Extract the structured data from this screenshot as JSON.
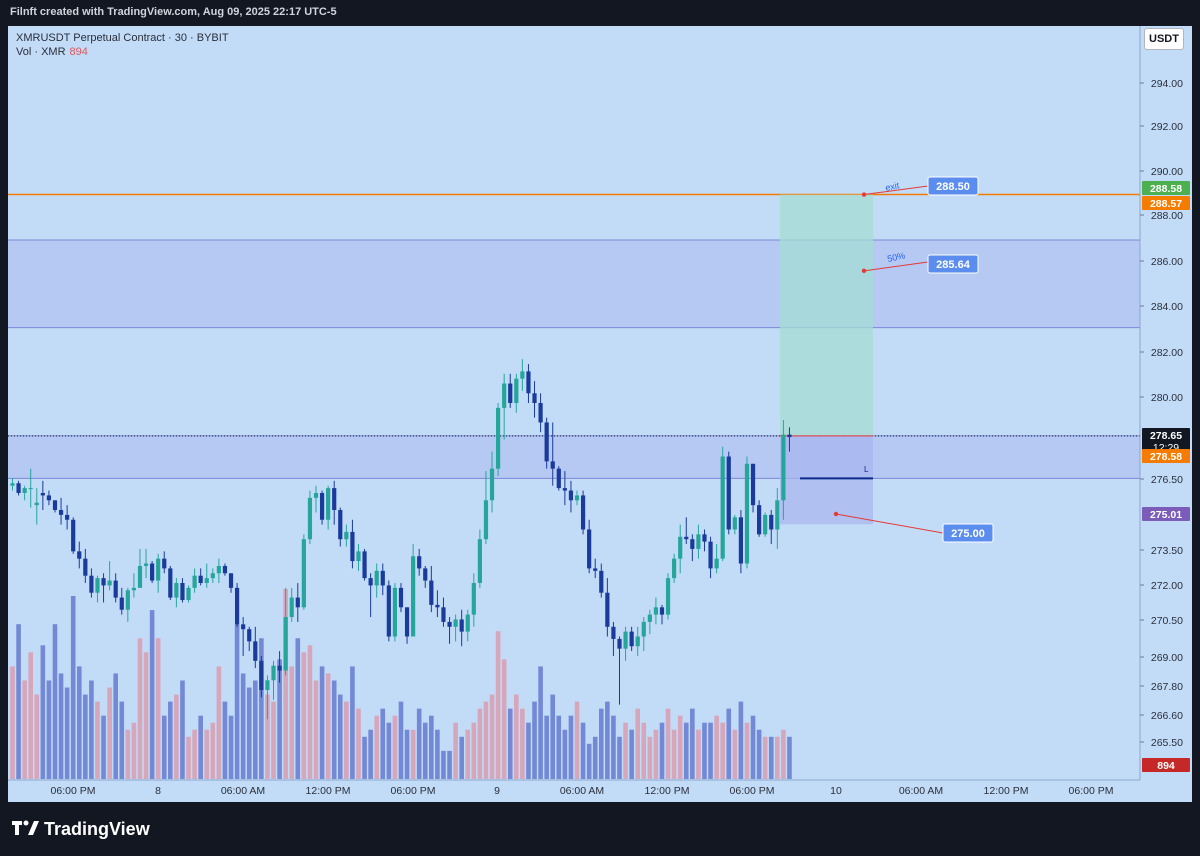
{
  "header": {
    "title": "Filnft created with TradingView.com, Aug 09, 2025 22:17 UTC-5"
  },
  "legend": {
    "symbol_line": "XMRUSDT Perpetual Contract · 30 · BYBIT",
    "vol_label": "Vol · XMR",
    "vol_value": "894"
  },
  "currency_button": "USDT",
  "footer": {
    "brand": "TradingView"
  },
  "colors": {
    "up": "#26a69a",
    "down": "#1a3a9c",
    "vol_up": "#d8a0b4",
    "vol_down": "#6a7fd0",
    "exit_line": "#f57c00",
    "background": "#c2dcf8"
  },
  "chart_data": {
    "type": "candlestick",
    "symbol": "XMRUSDT Perpetual Contract",
    "interval": "30",
    "exchange": "BYBIT",
    "ylim": [
      264.5,
      295.5
    ],
    "y_ticks": [
      "294.00",
      "292.00",
      "290.00",
      "288.00",
      "286.00",
      "284.00",
      "282.00",
      "280.00",
      "276.50",
      "273.50",
      "272.00",
      "270.50",
      "269.00",
      "267.80",
      "266.60",
      "265.50"
    ],
    "x_ticks": [
      "06:00 PM",
      "8",
      "06:00 AM",
      "12:00 PM",
      "06:00 PM",
      "9",
      "06:00 AM",
      "12:00 PM",
      "06:00 PM",
      "10",
      "06:00 AM",
      "12:00 PM",
      "06:00 PM"
    ],
    "candles": [
      [
        276.6,
        276.9,
        276.4,
        276.7,
        80
      ],
      [
        276.7,
        276.8,
        276.2,
        276.3,
        110
      ],
      [
        276.3,
        276.6,
        276.0,
        276.5,
        70
      ],
      [
        276.5,
        277.3,
        275.7,
        276.5,
        90
      ],
      [
        275.8,
        276.5,
        275.0,
        275.9,
        60
      ],
      [
        276.3,
        276.8,
        275.6,
        276.2,
        95
      ],
      [
        276.2,
        276.4,
        275.8,
        276.0,
        70
      ],
      [
        276.0,
        276.0,
        275.5,
        275.6,
        110
      ],
      [
        275.6,
        276.1,
        275.0,
        275.4,
        75
      ],
      [
        275.4,
        275.8,
        274.8,
        275.2,
        65
      ],
      [
        275.2,
        275.3,
        273.8,
        273.9,
        130
      ],
      [
        273.9,
        274.3,
        273.2,
        273.6,
        80
      ],
      [
        273.6,
        274.0,
        272.6,
        272.9,
        60
      ],
      [
        272.9,
        273.2,
        272.0,
        272.2,
        70
      ],
      [
        272.2,
        272.9,
        271.8,
        272.8,
        55
      ],
      [
        272.8,
        273.0,
        271.8,
        272.5,
        45
      ],
      [
        272.5,
        273.5,
        272.3,
        272.7,
        65
      ],
      [
        272.7,
        273.0,
        271.8,
        272.0,
        75
      ],
      [
        272.0,
        272.4,
        271.3,
        271.5,
        55
      ],
      [
        271.5,
        272.4,
        271.0,
        272.3,
        35
      ],
      [
        272.3,
        273.0,
        272.0,
        272.4,
        40
      ],
      [
        272.4,
        274.0,
        272.4,
        273.3,
        100
      ],
      [
        273.3,
        274.0,
        272.8,
        273.4,
        90
      ],
      [
        273.4,
        273.5,
        272.6,
        272.7,
        120
      ],
      [
        272.7,
        273.8,
        272.2,
        273.6,
        100
      ],
      [
        273.6,
        273.9,
        273.0,
        273.2,
        45
      ],
      [
        273.2,
        273.3,
        271.9,
        272.0,
        55
      ],
      [
        272.0,
        272.8,
        271.6,
        272.6,
        60
      ],
      [
        272.6,
        272.8,
        271.8,
        271.9,
        70
      ],
      [
        271.9,
        272.5,
        271.8,
        272.4,
        30
      ],
      [
        272.4,
        273.2,
        272.2,
        272.9,
        35
      ],
      [
        272.9,
        273.2,
        272.5,
        272.6,
        45
      ],
      [
        272.6,
        273.4,
        272.4,
        272.8,
        35
      ],
      [
        272.8,
        273.2,
        272.6,
        273.0,
        40
      ],
      [
        273.0,
        273.6,
        272.6,
        273.3,
        80
      ],
      [
        273.3,
        273.4,
        272.9,
        273.0,
        55
      ],
      [
        273.0,
        273.0,
        272.2,
        272.4,
        45
      ],
      [
        272.4,
        272.6,
        270.8,
        270.9,
        110
      ],
      [
        270.9,
        271.2,
        269.6,
        270.7,
        75
      ],
      [
        270.7,
        270.8,
        269.8,
        270.2,
        65
      ],
      [
        270.2,
        270.8,
        269.1,
        269.4,
        70
      ],
      [
        269.4,
        269.6,
        267.9,
        268.2,
        100
      ],
      [
        268.2,
        268.8,
        267.0,
        268.6,
        60
      ],
      [
        268.6,
        269.4,
        267.8,
        269.2,
        55
      ],
      [
        269.2,
        269.8,
        268.5,
        269.0,
        85
      ],
      [
        269.0,
        272.4,
        268.8,
        271.2,
        135
      ],
      [
        271.2,
        272.4,
        271.0,
        272.0,
        80
      ],
      [
        272.0,
        272.6,
        271.0,
        271.6,
        100
      ],
      [
        271.6,
        274.6,
        271.5,
        274.4,
        90
      ],
      [
        274.4,
        276.4,
        274.2,
        276.1,
        95
      ],
      [
        276.1,
        276.6,
        275.5,
        276.3,
        70
      ],
      [
        276.3,
        276.4,
        275.0,
        275.2,
        80
      ],
      [
        275.2,
        276.6,
        274.8,
        276.5,
        75
      ],
      [
        276.5,
        276.8,
        275.0,
        275.6,
        70
      ],
      [
        275.6,
        275.7,
        274.1,
        274.4,
        60
      ],
      [
        274.4,
        275.0,
        274.1,
        274.7,
        55
      ],
      [
        274.7,
        275.2,
        273.2,
        273.5,
        80
      ],
      [
        273.5,
        274.2,
        273.1,
        273.9,
        50
      ],
      [
        273.9,
        274.0,
        272.7,
        272.8,
        30
      ],
      [
        272.8,
        273.0,
        271.2,
        272.5,
        35
      ],
      [
        272.5,
        273.4,
        272.0,
        273.1,
        45
      ],
      [
        273.1,
        273.4,
        272.1,
        272.5,
        50
      ],
      [
        272.5,
        272.7,
        270.2,
        270.4,
        40
      ],
      [
        270.4,
        272.6,
        270.2,
        272.4,
        45
      ],
      [
        272.4,
        272.6,
        271.4,
        271.6,
        55
      ],
      [
        271.6,
        271.6,
        270.1,
        270.4,
        35
      ],
      [
        270.4,
        274.2,
        270.4,
        273.7,
        35
      ],
      [
        273.7,
        274.0,
        272.9,
        273.2,
        50
      ],
      [
        273.2,
        273.3,
        272.4,
        272.7,
        40
      ],
      [
        272.7,
        273.3,
        271.4,
        271.7,
        45
      ],
      [
        271.7,
        272.3,
        271.2,
        271.6,
        35
      ],
      [
        271.6,
        272.0,
        270.8,
        271.0,
        20
      ],
      [
        271.0,
        271.2,
        270.1,
        270.8,
        20
      ],
      [
        270.8,
        271.3,
        270.2,
        271.1,
        40
      ],
      [
        271.1,
        271.5,
        270.0,
        270.6,
        30
      ],
      [
        270.6,
        271.5,
        270.2,
        271.3,
        35
      ],
      [
        271.3,
        273.0,
        270.8,
        272.6,
        40
      ],
      [
        272.6,
        274.8,
        272.4,
        274.4,
        50
      ],
      [
        274.4,
        277.2,
        274.2,
        276.0,
        55
      ],
      [
        276.0,
        278.0,
        275.5,
        277.3,
        60
      ],
      [
        277.3,
        280.0,
        277.0,
        279.8,
        105
      ],
      [
        279.8,
        281.2,
        278.5,
        280.8,
        85
      ],
      [
        280.8,
        281.2,
        279.8,
        280.0,
        50
      ],
      [
        280.0,
        281.2,
        279.6,
        281.0,
        60
      ],
      [
        281.0,
        281.8,
        280.5,
        281.3,
        50
      ],
      [
        281.3,
        281.6,
        280.0,
        280.4,
        40
      ],
      [
        280.4,
        280.9,
        279.4,
        280.0,
        55
      ],
      [
        280.0,
        280.4,
        278.8,
        279.2,
        80
      ],
      [
        279.2,
        279.4,
        277.3,
        277.6,
        45
      ],
      [
        277.6,
        279.2,
        276.6,
        277.3,
        60
      ],
      [
        277.3,
        277.4,
        276.4,
        276.5,
        45
      ],
      [
        276.5,
        277.2,
        275.8,
        276.4,
        35
      ],
      [
        276.4,
        276.8,
        275.5,
        276.0,
        45
      ],
      [
        276.0,
        276.4,
        275.8,
        276.2,
        55
      ],
      [
        276.2,
        276.4,
        274.6,
        274.8,
        40
      ],
      [
        274.8,
        275.2,
        273.0,
        273.2,
        25
      ],
      [
        273.2,
        273.6,
        272.8,
        273.1,
        30
      ],
      [
        273.1,
        273.4,
        272.0,
        272.2,
        50
      ],
      [
        272.2,
        272.8,
        270.4,
        270.8,
        55
      ],
      [
        270.8,
        271.0,
        269.6,
        270.3,
        45
      ],
      [
        270.3,
        270.4,
        267.6,
        269.9,
        30
      ],
      [
        269.9,
        270.8,
        269.4,
        270.6,
        40
      ],
      [
        270.6,
        270.8,
        269.8,
        270.0,
        35
      ],
      [
        270.0,
        270.8,
        269.6,
        270.4,
        50
      ],
      [
        270.4,
        271.2,
        269.8,
        271.0,
        40
      ],
      [
        271.0,
        271.5,
        270.5,
        271.3,
        30
      ],
      [
        271.3,
        272.0,
        270.9,
        271.6,
        35
      ],
      [
        271.6,
        271.7,
        270.9,
        271.3,
        40
      ],
      [
        271.3,
        273.0,
        271.1,
        272.8,
        50
      ],
      [
        272.8,
        273.8,
        272.6,
        273.6,
        35
      ],
      [
        273.6,
        275.0,
        273.0,
        274.5,
        45
      ],
      [
        274.5,
        275.3,
        274.2,
        274.4,
        40
      ],
      [
        274.4,
        274.6,
        273.5,
        274.0,
        50
      ],
      [
        274.0,
        275.0,
        273.6,
        274.6,
        35
      ],
      [
        274.6,
        274.8,
        273.9,
        274.3,
        40
      ],
      [
        274.3,
        274.5,
        272.8,
        273.2,
        40
      ],
      [
        273.2,
        274.2,
        273.0,
        273.6,
        45
      ],
      [
        273.6,
        278.2,
        273.5,
        277.8,
        40
      ],
      [
        277.8,
        278.0,
        274.6,
        274.8,
        50
      ],
      [
        274.8,
        275.4,
        274.6,
        275.3,
        35
      ],
      [
        275.3,
        275.6,
        273.0,
        273.4,
        55
      ],
      [
        273.4,
        277.8,
        273.2,
        277.5,
        40
      ],
      [
        277.5,
        277.5,
        275.5,
        275.8,
        45
      ],
      [
        275.8,
        276.0,
        274.5,
        274.6,
        35
      ],
      [
        274.6,
        275.5,
        274.5,
        275.4,
        30
      ],
      [
        275.4,
        275.6,
        274.2,
        274.8,
        30
      ],
      [
        274.8,
        276.5,
        274.0,
        276.0,
        30
      ],
      [
        276.0,
        279.3,
        275.2,
        278.7,
        35
      ],
      [
        278.7,
        279.0,
        278.0,
        278.6,
        30
      ]
    ],
    "horizontal_lines": [
      {
        "price": 288.57,
        "label": "288.57",
        "color": "#f57c00"
      },
      {
        "price": 278.65,
        "label": "278.65",
        "style": "dotted"
      }
    ],
    "zones": [
      {
        "from": 283.1,
        "to": 286.7
      },
      {
        "from": 276.9,
        "to": 278.65
      }
    ],
    "annotations": [
      {
        "text": "exit",
        "value": "288.50"
      },
      {
        "text": "50%",
        "value": "285.64"
      },
      {
        "text": "",
        "value": "275.00"
      },
      {
        "text": "L",
        "value": ""
      }
    ],
    "price_tags": [
      {
        "label": "288.58",
        "color": "#4caf50"
      },
      {
        "label": "288.57",
        "color": "#f57c00"
      },
      {
        "label": "278.65",
        "sublabel": "12:29",
        "color": "#131722"
      },
      {
        "label": "278.58",
        "color": "#f57c00"
      },
      {
        "label": "275.01",
        "color": "#7b5cb8"
      },
      {
        "label": "894",
        "color": "#c62828"
      }
    ]
  }
}
